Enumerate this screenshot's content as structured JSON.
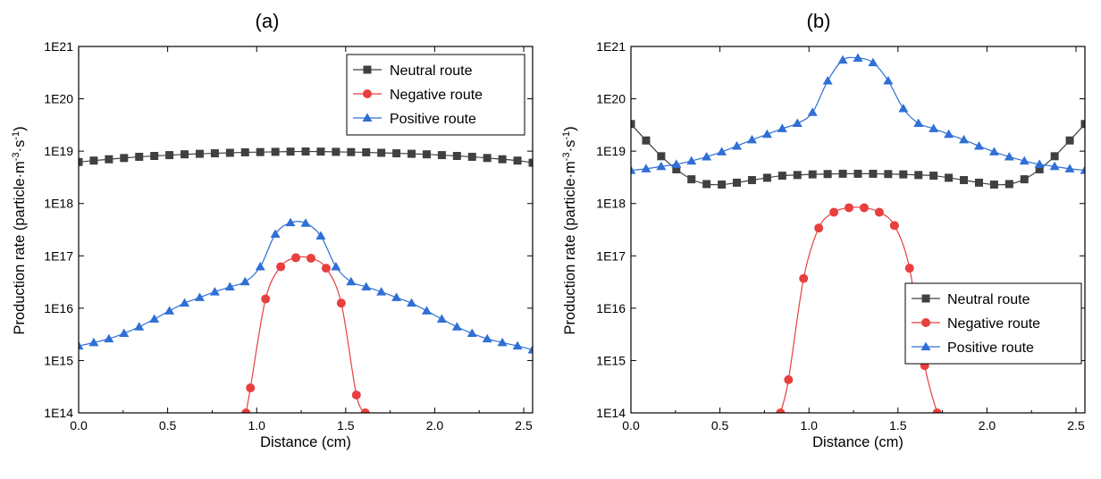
{
  "chart_data": [
    {
      "panel": "(a)",
      "type": "line",
      "xlabel": "Distance (cm)",
      "ylabel": "Production rate (particle·m-3·s-1)",
      "ylabel_parts": {
        "base": "Production rate (particle·m",
        "exp1": "-3",
        "mid": "·s",
        "exp2": "-1",
        "end": ")"
      },
      "xlim": [
        0.0,
        2.55
      ],
      "ylim": [
        100000000000000.0,
        1e+21
      ],
      "yscale": "log",
      "x_ticks": [
        0.0,
        0.5,
        1.0,
        1.5,
        2.0,
        2.5
      ],
      "x_tick_labels": [
        "0.0",
        "0.5",
        "1.0",
        "1.5",
        "2.0",
        "2.5"
      ],
      "y_ticks": [
        100000000000000.0,
        1000000000000000.0,
        1e+16,
        1e+17,
        1e+18,
        1e+19,
        1e+20,
        1e+21
      ],
      "y_tick_labels": [
        "1E14",
        "1E15",
        "1E16",
        "1E17",
        "1E18",
        "1E19",
        "1E20",
        "1E21"
      ],
      "grid": false,
      "legend_position": "top-right",
      "series": [
        {
          "name": "Neutral route",
          "color": "#404040",
          "marker": "square",
          "x": [
            0.0,
            0.085,
            0.17,
            0.255,
            0.34,
            0.425,
            0.51,
            0.595,
            0.68,
            0.765,
            0.85,
            0.935,
            1.02,
            1.105,
            1.19,
            1.275,
            1.36,
            1.445,
            1.53,
            1.615,
            1.7,
            1.785,
            1.87,
            1.955,
            2.04,
            2.125,
            2.21,
            2.295,
            2.38,
            2.465,
            2.55
          ],
          "y": [
            6.2e+18,
            6.6e+18,
            7e+18,
            7.4e+18,
            7.8e+18,
            8.1e+18,
            8.4e+18,
            8.7e+18,
            8.9e+18,
            9.1e+18,
            9.3e+18,
            9.5e+18,
            9.6e+18,
            9.7e+18,
            9.8e+18,
            9.85e+18,
            9.8e+18,
            9.7e+18,
            9.6e+18,
            9.5e+18,
            9.3e+18,
            9.1e+18,
            8.9e+18,
            8.7e+18,
            8.4e+18,
            8.1e+18,
            7.8e+18,
            7.4e+18,
            7e+18,
            6.6e+18,
            6e+18
          ]
        },
        {
          "name": "Negative route",
          "color": "#e83f3f",
          "marker": "circle",
          "x": [
            0.94,
            0.965,
            1.05,
            1.135,
            1.22,
            1.305,
            1.39,
            1.475,
            1.56,
            1.61
          ],
          "y": [
            100000000000000.0,
            300000000000000.0,
            1.5e+16,
            6.2e+16,
            9.2e+16,
            9e+16,
            5.8e+16,
            1.25e+16,
            220000000000000.0,
            100000000000000.0
          ]
        },
        {
          "name": "Positive route",
          "color": "#2f6fd6",
          "marker": "triangle",
          "x": [
            0.0,
            0.085,
            0.17,
            0.255,
            0.34,
            0.425,
            0.51,
            0.595,
            0.68,
            0.765,
            0.85,
            0.935,
            1.02,
            1.105,
            1.19,
            1.275,
            1.36,
            1.445,
            1.53,
            1.615,
            1.7,
            1.785,
            1.87,
            1.955,
            2.04,
            2.125,
            2.21,
            2.295,
            2.38,
            2.465,
            2.55
          ],
          "y": [
            1900000000000000.0,
            2200000000000000.0,
            2600000000000000.0,
            3300000000000000.0,
            4400000000000000.0,
            6200000000000000.0,
            8900000000000000.0,
            1.25e+16,
            1.6e+16,
            2.05e+16,
            2.55e+16,
            3.2e+16,
            6.2e+16,
            2.6e+17,
            4.3e+17,
            4.2e+17,
            2.4e+17,
            6.2e+16,
            3.2e+16,
            2.55e+16,
            2.05e+16,
            1.6e+16,
            1.25e+16,
            8900000000000000.0,
            6200000000000000.0,
            4400000000000000.0,
            3300000000000000.0,
            2600000000000000.0,
            2200000000000000.0,
            1900000000000000.0,
            1600000000000000.0
          ]
        }
      ]
    },
    {
      "panel": "(b)",
      "type": "line",
      "xlabel": "Distance (cm)",
      "ylabel": "Production rate (particle·m-3·s-1)",
      "ylabel_parts": {
        "base": "Production rate (particle·m",
        "exp1": "-3",
        "mid": "·s",
        "exp2": "-1",
        "end": ")"
      },
      "xlim": [
        0.0,
        2.55
      ],
      "ylim": [
        100000000000000.0,
        1e+21
      ],
      "yscale": "log",
      "x_ticks": [
        0.0,
        0.5,
        1.0,
        1.5,
        2.0,
        2.5
      ],
      "x_tick_labels": [
        "0.0",
        "0.5",
        "1.0",
        "1.5",
        "2.0",
        "2.5"
      ],
      "y_ticks": [
        100000000000000.0,
        1000000000000000.0,
        1e+16,
        1e+17,
        1e+18,
        1e+19,
        1e+20,
        1e+21
      ],
      "y_tick_labels": [
        "1E14",
        "1E15",
        "1E16",
        "1E17",
        "1E18",
        "1E19",
        "1E20",
        "1E21"
      ],
      "grid": false,
      "legend_position": "bottom-right",
      "series": [
        {
          "name": "Neutral route",
          "color": "#404040",
          "marker": "square",
          "x": [
            0.0,
            0.085,
            0.17,
            0.255,
            0.34,
            0.425,
            0.51,
            0.595,
            0.68,
            0.765,
            0.85,
            0.935,
            1.02,
            1.105,
            1.19,
            1.275,
            1.36,
            1.445,
            1.53,
            1.615,
            1.7,
            1.785,
            1.87,
            1.955,
            2.04,
            2.125,
            2.21,
            2.295,
            2.38,
            2.465,
            2.55
          ],
          "y": [
            3.3e+19,
            1.6e+19,
            8e+18,
            4.5e+18,
            2.9e+18,
            2.35e+18,
            2.3e+18,
            2.5e+18,
            2.8e+18,
            3.1e+18,
            3.4e+18,
            3.5e+18,
            3.6e+18,
            3.65e+18,
            3.7e+18,
            3.7e+18,
            3.7e+18,
            3.65e+18,
            3.6e+18,
            3.5e+18,
            3.4e+18,
            3.1e+18,
            2.8e+18,
            2.5e+18,
            2.3e+18,
            2.35e+18,
            2.9e+18,
            4.5e+18,
            8e+18,
            1.6e+19,
            3.3e+19
          ]
        },
        {
          "name": "Negative route",
          "color": "#e83f3f",
          "marker": "circle",
          "x": [
            0.84,
            0.885,
            0.97,
            1.055,
            1.14,
            1.225,
            1.31,
            1.395,
            1.48,
            1.565,
            1.65,
            1.72
          ],
          "y": [
            100000000000000.0,
            430000000000000.0,
            3.7e+16,
            3.4e+17,
            6.8e+17,
            8.3e+17,
            8.3e+17,
            6.8e+17,
            3.8e+17,
            5.8e+16,
            800000000000000.0,
            100000000000000.0
          ]
        },
        {
          "name": "Positive route",
          "color": "#2f6fd6",
          "marker": "triangle",
          "x": [
            0.0,
            0.085,
            0.17,
            0.255,
            0.34,
            0.425,
            0.51,
            0.595,
            0.68,
            0.765,
            0.85,
            0.935,
            1.02,
            1.105,
            1.19,
            1.275,
            1.36,
            1.445,
            1.53,
            1.615,
            1.7,
            1.785,
            1.87,
            1.955,
            2.04,
            2.125,
            2.21,
            2.295,
            2.38,
            2.465,
            2.55
          ],
          "y": [
            4.3e+18,
            4.6e+18,
            5.1e+18,
            5.6e+18,
            6.5e+18,
            7.8e+18,
            9.7e+18,
            1.25e+19,
            1.65e+19,
            2.1e+19,
            2.7e+19,
            3.4e+19,
            5.5e+19,
            2.2e+20,
            5.5e+20,
            6e+20,
            4.9e+20,
            2.2e+20,
            6.5e+19,
            3.4e+19,
            2.7e+19,
            2.1e+19,
            1.65e+19,
            1.25e+19,
            9.7e+18,
            7.8e+18,
            6.5e+18,
            5.6e+18,
            5.1e+18,
            4.6e+18,
            4.3e+18
          ]
        }
      ]
    }
  ]
}
